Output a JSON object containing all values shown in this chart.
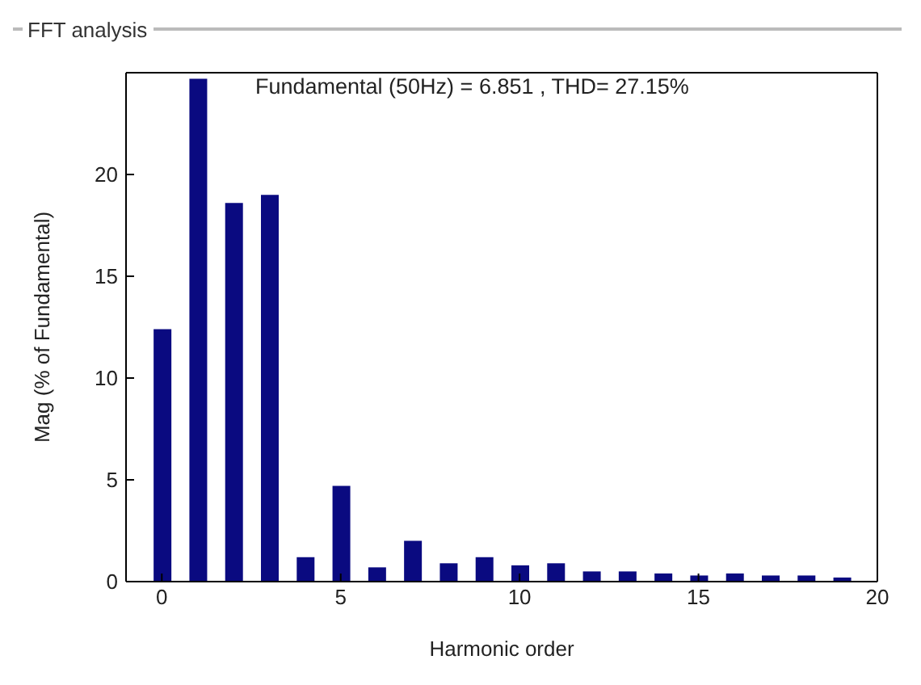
{
  "chart_data": {
    "type": "bar",
    "title": "FFT analysis",
    "subtitle": "Fundamental (50Hz) = 6.851 , THD= 27.15%",
    "xlabel": "Harmonic order",
    "ylabel": "Mag (% of Fundamental)",
    "x": [
      0,
      1,
      2,
      3,
      4,
      5,
      6,
      7,
      8,
      9,
      10,
      11,
      12,
      13,
      14,
      15,
      16,
      17,
      18,
      19
    ],
    "values": [
      12.4,
      24.7,
      18.6,
      19.0,
      1.2,
      4.7,
      0.7,
      2.0,
      0.9,
      1.2,
      0.8,
      0.9,
      0.5,
      0.5,
      0.4,
      0.3,
      0.4,
      0.3,
      0.3,
      0.2
    ],
    "color": "#0a0a80",
    "xlim": [
      -1,
      20
    ],
    "xticks": [
      0,
      5,
      10,
      15,
      20
    ],
    "ylim": [
      0,
      25
    ],
    "yticks": [
      0,
      5,
      10,
      15,
      20
    ],
    "grid": false,
    "legend": false
  }
}
